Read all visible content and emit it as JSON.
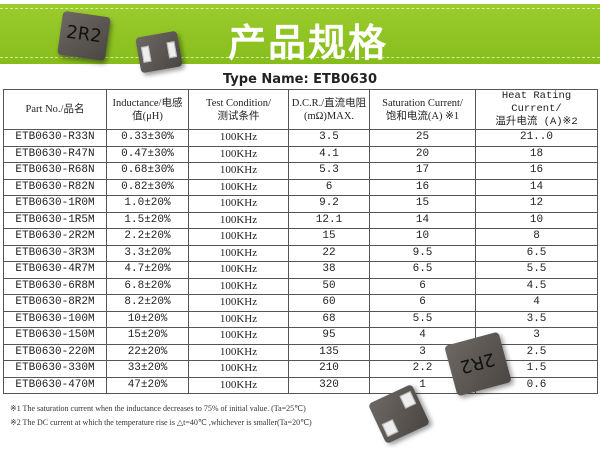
{
  "banner": {
    "title": "产品规格"
  },
  "type_name": "Type Name: ETB0630",
  "chip_marking": "2R2",
  "table": {
    "headers": [
      [
        "Part No./品名",
        ""
      ],
      [
        "Inductance/电感",
        "值(μH)"
      ],
      [
        "Test Condition/",
        "测试条件"
      ],
      [
        "D.C.R./直流电阻",
        "(mΩ)MAX."
      ],
      [
        "Saturation Current/",
        "饱和电流(A) ※1"
      ],
      [
        "Heat Rating Current/",
        "温升电流 (A)※2"
      ]
    ],
    "rows": [
      [
        "ETB0630-R33N",
        "0.33±30%",
        "100KHz",
        "3.5",
        "25",
        "21..0"
      ],
      [
        "ETB0630-R47N",
        "0.47±30%",
        "100KHz",
        "4.1",
        "20",
        "18"
      ],
      [
        "ETB0630-R68N",
        "0.68±30%",
        "100KHz",
        "5.3",
        "17",
        "16"
      ],
      [
        "ETB0630-R82N",
        "0.82±30%",
        "100KHz",
        "6",
        "16",
        "14"
      ],
      [
        "ETB0630-1R0M",
        "1.0±20%",
        "100KHz",
        "9.2",
        "15",
        "12"
      ],
      [
        "ETB0630-1R5M",
        "1.5±20%",
        "100KHz",
        "12.1",
        "14",
        "10"
      ],
      [
        "ETB0630-2R2M",
        "2.2±20%",
        "100KHz",
        "15",
        "10",
        "8"
      ],
      [
        "ETB0630-3R3M",
        "3.3±20%",
        "100KHz",
        "22",
        "9.5",
        "6.5"
      ],
      [
        "ETB0630-4R7M",
        "4.7±20%",
        "100KHz",
        "38",
        "6.5",
        "5.5"
      ],
      [
        "ETB0630-6R8M",
        "6.8±20%",
        "100KHz",
        "50",
        "6",
        "4.5"
      ],
      [
        "ETB0630-8R2M",
        "8.2±20%",
        "100KHz",
        "60",
        "6",
        "4"
      ],
      [
        "ETB0630-100M",
        "10±20%",
        "100KHz",
        "68",
        "5.5",
        "3.5"
      ],
      [
        "ETB0630-150M",
        "15±20%",
        "100KHz",
        "95",
        "4",
        "3"
      ],
      [
        "ETB0630-220M",
        "22±20%",
        "100KHz",
        "135",
        "3",
        "2.5"
      ],
      [
        "ETB0630-330M",
        "33±20%",
        "100KHz",
        "210",
        "2.2",
        "1.5"
      ],
      [
        "ETB0630-470M",
        "47±20%",
        "100KHz",
        "320",
        "1",
        "0.6"
      ]
    ]
  },
  "notes": [
    "※1 The saturation current when the inductance decreases to 75% of initial value. (Ta=25℃)",
    "※2 The DC current at which the temperature rise is △t=40℃ ,whichever is smaller(Ta=20℃)"
  ]
}
